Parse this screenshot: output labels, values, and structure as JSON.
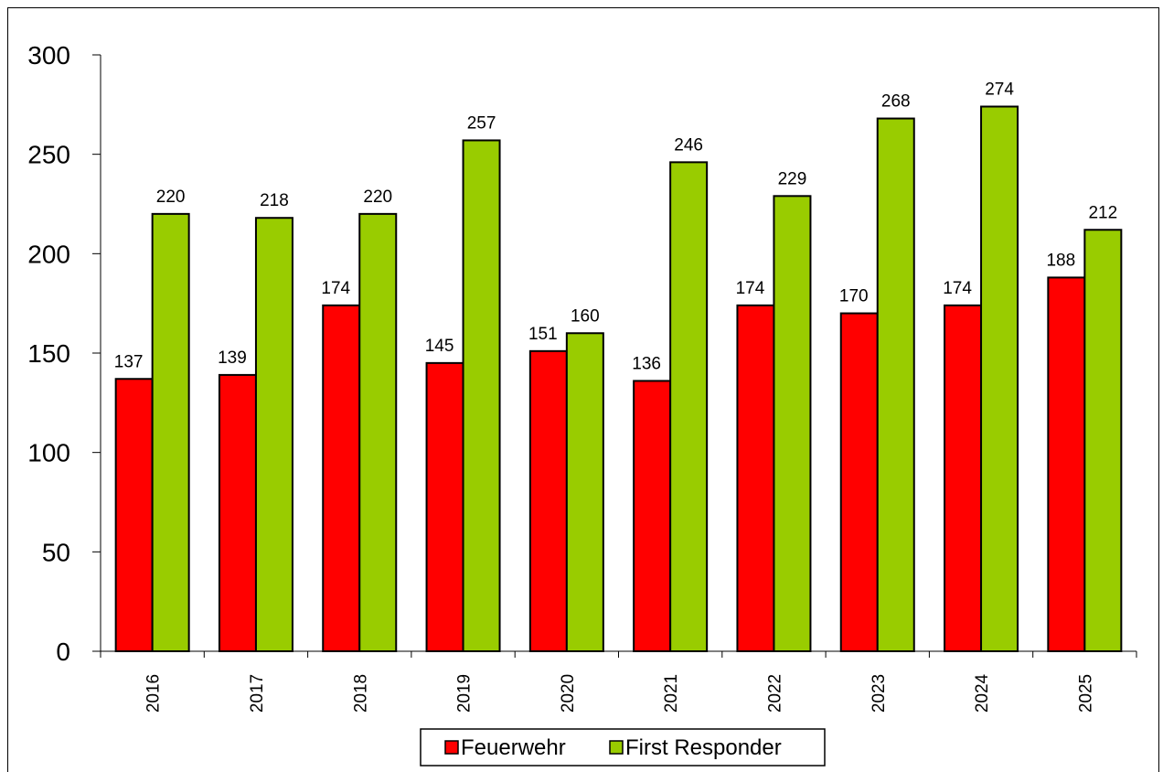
{
  "chart_data": {
    "type": "bar",
    "categories": [
      "2016",
      "2017",
      "2018",
      "2019",
      "2020",
      "2021",
      "2022",
      "2023",
      "2024",
      "2025"
    ],
    "series": [
      {
        "name": "Feuerwehr",
        "color": "#ff0000",
        "values": [
          137,
          139,
          174,
          145,
          151,
          136,
          174,
          170,
          174,
          188
        ]
      },
      {
        "name": "First Responder",
        "color": "#99cc00",
        "values": [
          220,
          218,
          220,
          257,
          160,
          246,
          229,
          268,
          274,
          212
        ]
      }
    ],
    "ylim": [
      0,
      300
    ],
    "yticks": [
      0,
      50,
      100,
      150,
      200,
      250,
      300
    ],
    "grid": false,
    "legend_position": "bottom",
    "title": "",
    "xlabel": "",
    "ylabel": ""
  }
}
